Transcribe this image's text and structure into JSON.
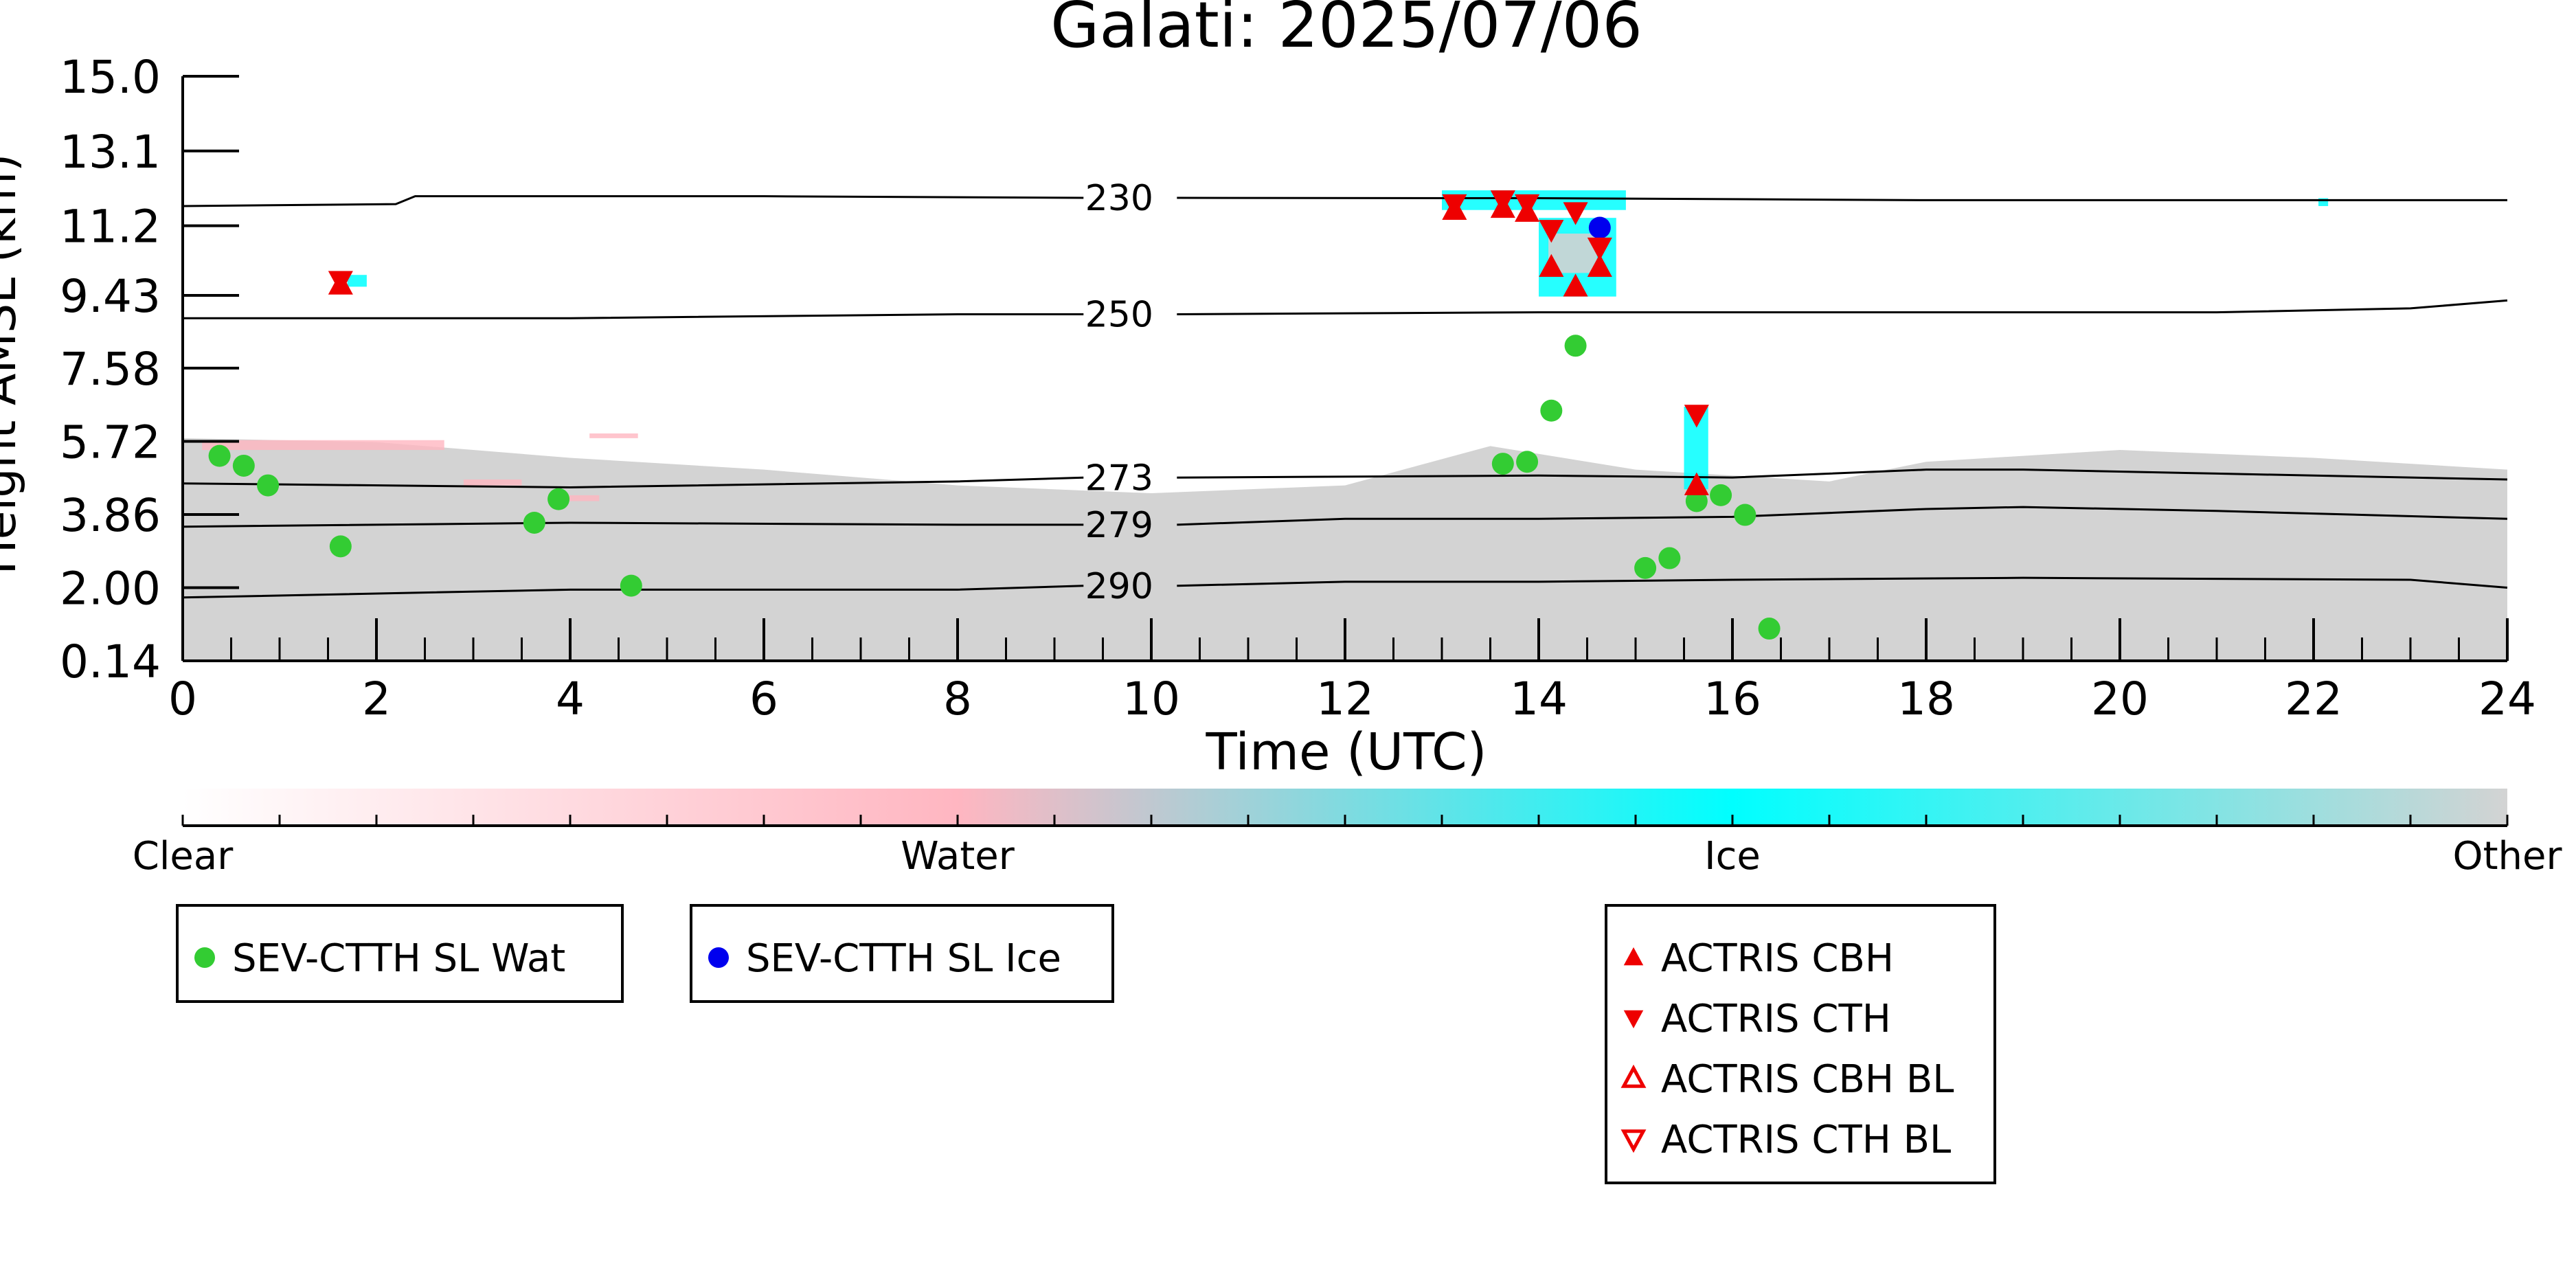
{
  "chart_data": {
    "type": "scatter",
    "title": "Galati: 2025/07/06",
    "xlabel": "Time (UTC)",
    "ylabel": "Height AMSL (km)",
    "xlim": [
      0,
      24
    ],
    "ylim": [
      0.14,
      15.0
    ],
    "x_ticks": [
      "0",
      "2",
      "4",
      "6",
      "8",
      "10",
      "12",
      "14",
      "16",
      "18",
      "20",
      "22",
      "24"
    ],
    "y_ticks": [
      "0.14",
      "2.00",
      "3.86",
      "5.72",
      "7.58",
      "9.43",
      "11.2",
      "13.1",
      "15.0"
    ],
    "isotherms": [
      {
        "label": "230",
        "label_x": 9.3,
        "points": [
          [
            0,
            11.7
          ],
          [
            2.2,
            11.75
          ],
          [
            2.4,
            11.95
          ],
          [
            6,
            11.95
          ],
          [
            10,
            11.9
          ],
          [
            14,
            11.9
          ],
          [
            18,
            11.85
          ],
          [
            21,
            11.85
          ],
          [
            24,
            11.85
          ]
        ]
      },
      {
        "label": "250",
        "label_x": 9.3,
        "points": [
          [
            0,
            8.85
          ],
          [
            4,
            8.85
          ],
          [
            8,
            8.95
          ],
          [
            10,
            8.95
          ],
          [
            14,
            9.0
          ],
          [
            18,
            9.0
          ],
          [
            21,
            9.0
          ],
          [
            23,
            9.1
          ],
          [
            24,
            9.3
          ]
        ]
      },
      {
        "label": "273",
        "label_x": 9.3,
        "points": [
          [
            0,
            4.65
          ],
          [
            4,
            4.55
          ],
          [
            8,
            4.7
          ],
          [
            10,
            4.85
          ],
          [
            14,
            4.85
          ],
          [
            16,
            4.8
          ],
          [
            18,
            5.0
          ],
          [
            19,
            5.0
          ],
          [
            21,
            4.9
          ],
          [
            24,
            4.75
          ]
        ]
      },
      {
        "label": "279",
        "label_x": 9.3,
        "points": [
          [
            0,
            3.55
          ],
          [
            4,
            3.65
          ],
          [
            8,
            3.6
          ],
          [
            10,
            3.6
          ],
          [
            12,
            3.75
          ],
          [
            14,
            3.75
          ],
          [
            16,
            3.8
          ],
          [
            18,
            4.0
          ],
          [
            19,
            4.05
          ],
          [
            21,
            3.95
          ],
          [
            24,
            3.75
          ]
        ]
      },
      {
        "label": "290",
        "label_x": 9.3,
        "points": [
          [
            0,
            1.75
          ],
          [
            4,
            1.95
          ],
          [
            8,
            1.95
          ],
          [
            10,
            2.1
          ],
          [
            12,
            2.15
          ],
          [
            14,
            2.15
          ],
          [
            16,
            2.2
          ],
          [
            19,
            2.25
          ],
          [
            23,
            2.2
          ],
          [
            24,
            2.0
          ]
        ]
      }
    ],
    "series": [
      {
        "name": "SEV-CTTH SL Wat",
        "marker": "circle",
        "color": "#33cc33",
        "points": [
          [
            0.38,
            5.35
          ],
          [
            0.63,
            5.1
          ],
          [
            0.88,
            4.6
          ],
          [
            1.63,
            3.05
          ],
          [
            3.63,
            3.65
          ],
          [
            3.88,
            4.25
          ],
          [
            4.63,
            2.05
          ],
          [
            13.63,
            5.15
          ],
          [
            13.88,
            5.2
          ],
          [
            14.13,
            6.5
          ],
          [
            14.38,
            8.15
          ],
          [
            15.1,
            2.5
          ],
          [
            15.35,
            2.75
          ],
          [
            15.63,
            4.2
          ],
          [
            15.88,
            4.35
          ],
          [
            16.13,
            3.85
          ],
          [
            16.38,
            0.96
          ]
        ]
      },
      {
        "name": "SEV-CTTH SL Ice",
        "marker": "circle",
        "color": "#0000ee",
        "points": [
          [
            14.63,
            11.15
          ]
        ]
      },
      {
        "name": "ACTRIS CBH",
        "marker": "triangle-up",
        "color": "#ee0000",
        "points": [
          [
            1.63,
            9.7
          ],
          [
            13.13,
            11.6
          ],
          [
            13.63,
            11.65
          ],
          [
            13.88,
            11.55
          ],
          [
            14.13,
            10.15
          ],
          [
            14.38,
            9.65
          ],
          [
            14.63,
            10.15
          ],
          [
            15.63,
            4.6
          ]
        ]
      },
      {
        "name": "ACTRIS CTH",
        "marker": "triangle-down",
        "color": "#ee0000",
        "points": [
          [
            1.63,
            9.8
          ],
          [
            13.13,
            11.75
          ],
          [
            13.63,
            11.85
          ],
          [
            13.88,
            11.75
          ],
          [
            14.13,
            11.1
          ],
          [
            14.38,
            11.55
          ],
          [
            14.63,
            10.65
          ],
          [
            15.63,
            6.4
          ]
        ]
      },
      {
        "name": "ACTRIS CBH BL",
        "marker": "triangle-up-open",
        "color": "#ee0000",
        "points": []
      },
      {
        "name": "ACTRIS CTH BL",
        "marker": "triangle-down-open",
        "color": "#ee0000",
        "points": []
      }
    ],
    "colorbar": {
      "labels": [
        "Clear",
        "Water",
        "Ice",
        "Other"
      ],
      "colors": [
        "#ffffff",
        "#ffb6c1",
        "#00ffff",
        "#d3d3d3"
      ]
    },
    "background_colors": {
      "other": "#d3d3d3",
      "ice": "#00ffff",
      "water": "#ffb6c1"
    }
  }
}
